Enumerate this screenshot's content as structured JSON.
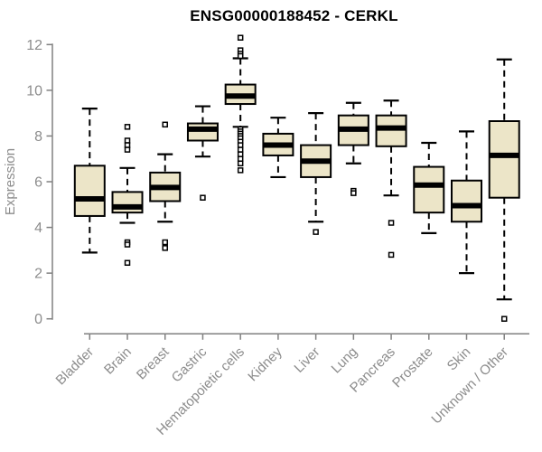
{
  "chart_data": {
    "type": "boxplot",
    "title": "ENSG00000188452 - CERKL",
    "xlabel": "",
    "ylabel": "Expression",
    "ylim": [
      0,
      12
    ],
    "yticks": [
      0,
      2,
      4,
      6,
      8,
      10,
      12
    ],
    "grid": false,
    "legend": "none",
    "categories": [
      "Bladder",
      "Brain",
      "Breast",
      "Gastric",
      "Hematopoietic cells",
      "Kidney",
      "Liver",
      "Lung",
      "Pancreas",
      "Prostate",
      "Skin",
      "Unknown / Other"
    ],
    "series": [
      {
        "name": "Bladder",
        "whisker_low": 2.9,
        "q1": 4.5,
        "median": 5.25,
        "q3": 6.7,
        "whisker_high": 9.2,
        "outliers": []
      },
      {
        "name": "Brain",
        "whisker_low": 4.2,
        "q1": 4.65,
        "median": 4.9,
        "q3": 5.55,
        "whisker_high": 6.6,
        "outliers": [
          8.4,
          7.8,
          7.6,
          7.4,
          3.35,
          3.25,
          2.45
        ]
      },
      {
        "name": "Breast",
        "whisker_low": 4.25,
        "q1": 5.15,
        "median": 5.75,
        "q3": 6.4,
        "whisker_high": 7.2,
        "outliers": [
          8.5,
          3.35,
          3.1
        ]
      },
      {
        "name": "Gastric",
        "whisker_low": 7.1,
        "q1": 7.8,
        "median": 8.3,
        "q3": 8.55,
        "whisker_high": 9.3,
        "outliers": [
          5.3
        ]
      },
      {
        "name": "Hematopoietic cells",
        "whisker_low": 8.4,
        "q1": 9.4,
        "median": 9.75,
        "q3": 10.25,
        "whisker_high": 11.4,
        "outliers": [
          12.3,
          11.75,
          11.6,
          11.5,
          8.3,
          8.2,
          8.1,
          8.0,
          7.9,
          7.75,
          7.6,
          7.4,
          7.2,
          7.0,
          6.8,
          6.5
        ]
      },
      {
        "name": "Kidney",
        "whisker_low": 6.2,
        "q1": 7.15,
        "median": 7.6,
        "q3": 8.1,
        "whisker_high": 8.8,
        "outliers": []
      },
      {
        "name": "Liver",
        "whisker_low": 4.25,
        "q1": 6.2,
        "median": 6.9,
        "q3": 7.6,
        "whisker_high": 9.0,
        "outliers": [
          3.8
        ]
      },
      {
        "name": "Lung",
        "whisker_low": 6.8,
        "q1": 7.6,
        "median": 8.3,
        "q3": 8.9,
        "whisker_high": 9.45,
        "outliers": [
          5.6,
          5.5
        ]
      },
      {
        "name": "Pancreas",
        "whisker_low": 5.4,
        "q1": 7.55,
        "median": 8.35,
        "q3": 8.9,
        "whisker_high": 9.55,
        "outliers": [
          4.2,
          2.8
        ]
      },
      {
        "name": "Prostate",
        "whisker_low": 3.75,
        "q1": 4.65,
        "median": 5.85,
        "q3": 6.65,
        "whisker_high": 7.7,
        "outliers": []
      },
      {
        "name": "Skin",
        "whisker_low": 2.0,
        "q1": 4.25,
        "median": 4.95,
        "q3": 6.05,
        "whisker_high": 8.2,
        "outliers": []
      },
      {
        "name": "Unknown / Other",
        "whisker_low": 0.85,
        "q1": 5.3,
        "median": 7.15,
        "q3": 8.65,
        "whisker_high": 11.35,
        "outliers": [
          0.0
        ]
      }
    ]
  },
  "colors": {
    "box_fill": "#ece5c8",
    "box_border": "#000000",
    "median": "#000000",
    "whisker": "#000000",
    "outlier_stroke": "#000000",
    "outlier_fill": "#ffffff",
    "axis_line": "#808080",
    "tick_label": "#8c8c8c",
    "axis_title": "#8c8c8c",
    "title": "#000000",
    "background": "#ffffff"
  }
}
